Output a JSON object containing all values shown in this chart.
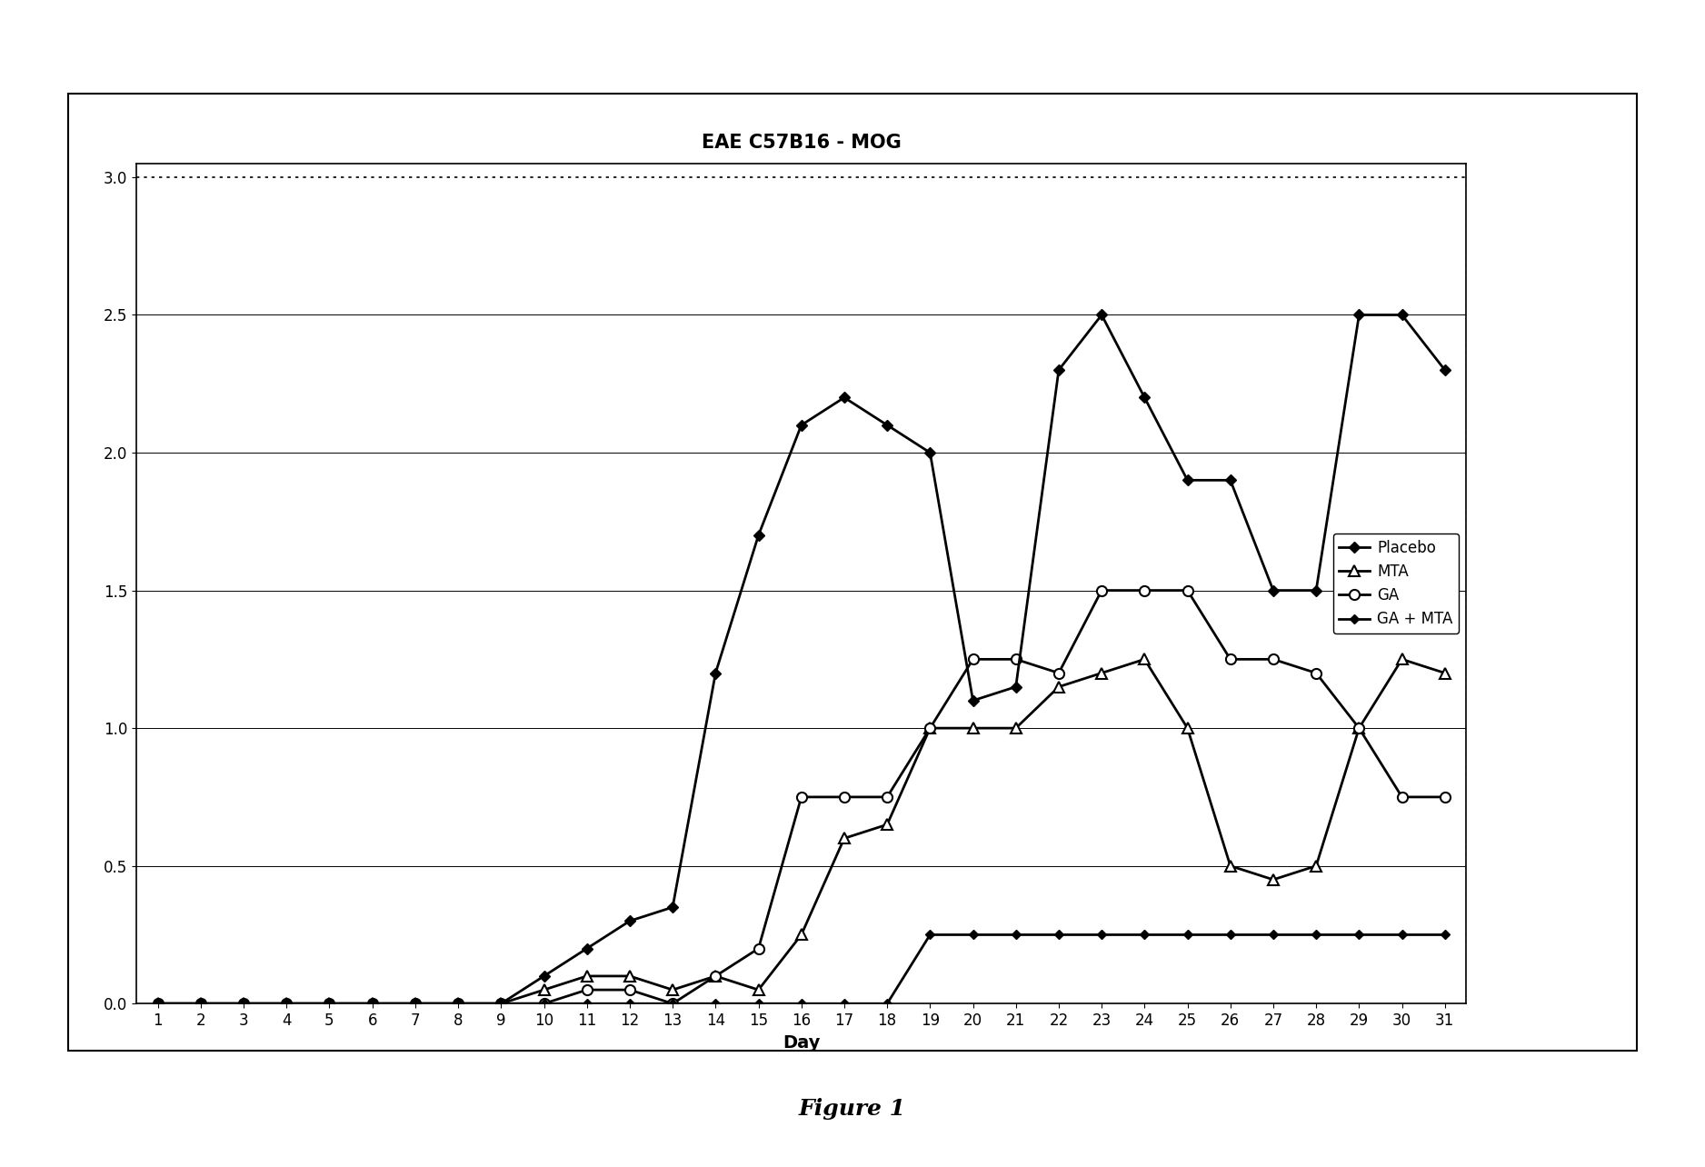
{
  "title": "EAE C57B16 - MOG",
  "xlabel": "Day",
  "figure_caption": "Figure 1",
  "days": [
    1,
    2,
    3,
    4,
    5,
    6,
    7,
    8,
    9,
    10,
    11,
    12,
    13,
    14,
    15,
    16,
    17,
    18,
    19,
    20,
    21,
    22,
    23,
    24,
    25,
    26,
    27,
    28,
    29,
    30,
    31
  ],
  "placebo": [
    0.0,
    0.0,
    0.0,
    0.0,
    0.0,
    0.0,
    0.0,
    0.0,
    0.0,
    0.1,
    0.2,
    0.3,
    0.35,
    1.2,
    1.7,
    2.1,
    2.2,
    2.1,
    2.0,
    1.1,
    1.15,
    2.3,
    2.5,
    2.2,
    1.9,
    1.9,
    1.5,
    1.5,
    2.5,
    2.5,
    2.3
  ],
  "mta": [
    0.0,
    0.0,
    0.0,
    0.0,
    0.0,
    0.0,
    0.0,
    0.0,
    0.0,
    0.05,
    0.1,
    0.1,
    0.05,
    0.1,
    0.05,
    0.25,
    0.6,
    0.65,
    1.0,
    1.0,
    1.0,
    1.15,
    1.2,
    1.25,
    1.0,
    0.5,
    0.45,
    0.5,
    1.0,
    1.25,
    1.2
  ],
  "ga": [
    0.0,
    0.0,
    0.0,
    0.0,
    0.0,
    0.0,
    0.0,
    0.0,
    0.0,
    0.0,
    0.05,
    0.05,
    0.0,
    0.1,
    0.2,
    0.75,
    0.75,
    0.75,
    1.0,
    1.25,
    1.25,
    1.2,
    1.5,
    1.5,
    1.5,
    1.25,
    1.25,
    1.2,
    1.0,
    0.75,
    0.75
  ],
  "ga_mta": [
    0.0,
    0.0,
    0.0,
    0.0,
    0.0,
    0.0,
    0.0,
    0.0,
    0.0,
    0.0,
    0.0,
    0.0,
    0.0,
    0.0,
    0.0,
    0.0,
    0.0,
    0.0,
    0.25,
    0.25,
    0.25,
    0.25,
    0.25,
    0.25,
    0.25,
    0.25,
    0.25,
    0.25,
    0.25,
    0.25,
    0.25
  ],
  "ylim_min": 0.0,
  "ylim_max": 3.0,
  "yticks": [
    0.0,
    0.5,
    1.0,
    1.5,
    2.0,
    2.5,
    3.0
  ],
  "background_color": "#ffffff",
  "title_fontsize": 15,
  "label_fontsize": 14,
  "tick_fontsize": 12,
  "legend_fontsize": 12,
  "caption_fontsize": 18
}
